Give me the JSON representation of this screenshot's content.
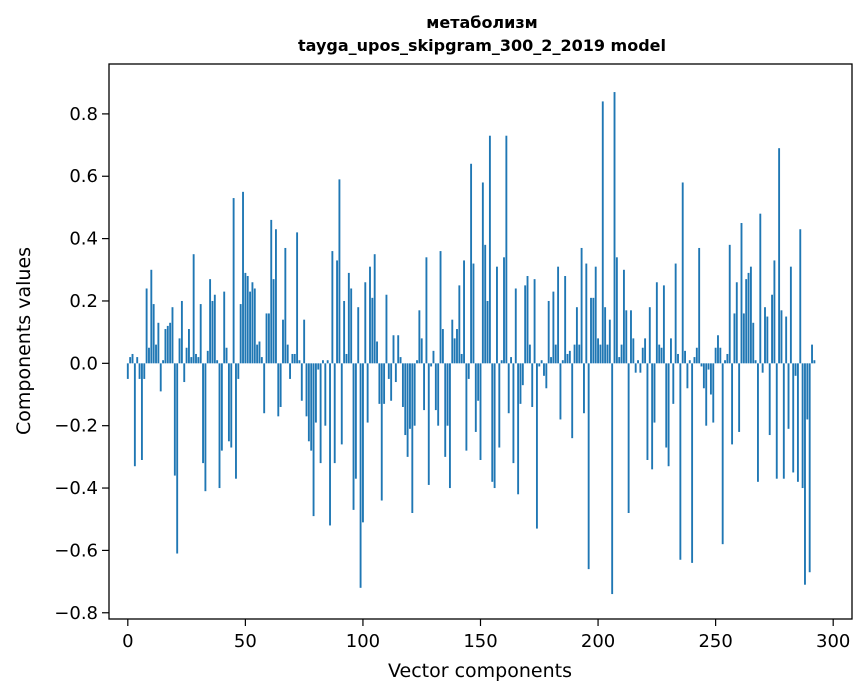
{
  "chart_data": {
    "type": "bar",
    "title": "метаболизм",
    "subtitle": "tayga_upos_skipgram_300_2_2019 model",
    "xlabel": "Vector components",
    "ylabel": "Components values",
    "xlim": [
      -8,
      308
    ],
    "ylim": [
      -0.82,
      0.96
    ],
    "xticks": [
      0,
      50,
      100,
      150,
      200,
      250,
      300
    ],
    "yticks": [
      -0.8,
      -0.6,
      -0.4,
      -0.2,
      0.0,
      0.2,
      0.4,
      0.6,
      0.8
    ],
    "ytick_labels": [
      "−0.8",
      "−0.6",
      "−0.4",
      "−0.2",
      "0.0",
      "0.2",
      "0.4",
      "0.6",
      "0.8"
    ],
    "bar_color": "#1f77b4",
    "values": [
      -0.05,
      0.02,
      0.03,
      -0.33,
      0.02,
      -0.05,
      -0.31,
      -0.05,
      0.24,
      0.05,
      0.3,
      0.19,
      0.06,
      0.13,
      -0.09,
      0.01,
      0.11,
      0.12,
      0.13,
      0.18,
      -0.36,
      -0.61,
      0.08,
      0.2,
      -0.06,
      0.05,
      0.11,
      0.02,
      0.35,
      0.03,
      0.02,
      0.19,
      -0.32,
      -0.41,
      0.04,
      0.27,
      0.2,
      0.22,
      0.01,
      -0.4,
      -0.28,
      0.23,
      0.05,
      -0.25,
      -0.27,
      0.53,
      -0.37,
      -0.05,
      0.19,
      0.55,
      0.29,
      0.28,
      0.23,
      0.26,
      0.24,
      0.06,
      0.07,
      0.02,
      -0.16,
      0.16,
      0.16,
      0.46,
      0.27,
      0.43,
      -0.17,
      -0.14,
      0.14,
      0.37,
      0.06,
      -0.05,
      0.03,
      0.03,
      0.42,
      0.01,
      -0.12,
      0.14,
      -0.17,
      -0.25,
      -0.28,
      -0.49,
      -0.19,
      -0.02,
      -0.32,
      0.01,
      -0.2,
      0.01,
      -0.52,
      0.36,
      -0.32,
      0.33,
      0.59,
      -0.26,
      0.2,
      0.03,
      0.29,
      0.24,
      -0.47,
      -0.37,
      0.18,
      -0.72,
      -0.51,
      0.26,
      -0.19,
      0.31,
      0.21,
      0.35,
      0.07,
      -0.13,
      -0.44,
      -0.13,
      0.22,
      -0.05,
      -0.12,
      0.09,
      -0.06,
      0.09,
      0.02,
      -0.14,
      -0.23,
      -0.3,
      -0.21,
      -0.48,
      -0.2,
      0.01,
      0.17,
      0.08,
      -0.15,
      0.34,
      -0.39,
      -0.01,
      0.04,
      -0.15,
      -0.2,
      0.36,
      0.11,
      -0.3,
      -0.2,
      -0.4,
      0.14,
      0.08,
      0.11,
      0.25,
      0.03,
      0.33,
      -0.28,
      -0.05,
      0.64,
      0.32,
      -0.22,
      -0.12,
      -0.31,
      0.58,
      0.38,
      0.2,
      0.73,
      -0.38,
      -0.4,
      0.31,
      -0.27,
      0.01,
      0.34,
      0.73,
      -0.16,
      0.02,
      -0.32,
      0.24,
      -0.42,
      -0.13,
      -0.07,
      0.25,
      0.28,
      0.06,
      -0.14,
      0.27,
      -0.53,
      -0.01,
      0.01,
      -0.04,
      -0.08,
      0.2,
      0.02,
      0.23,
      0.06,
      0.31,
      -0.18,
      0.01,
      0.28,
      0.03,
      0.04,
      -0.24,
      0.06,
      0.18,
      0.06,
      0.37,
      -0.16,
      0.32,
      -0.66,
      0.21,
      0.21,
      0.31,
      0.08,
      0.06,
      0.84,
      0.18,
      0.06,
      0.14,
      -0.74,
      0.87,
      0.34,
      0.02,
      0.06,
      0.3,
      0.17,
      -0.48,
      0.17,
      0.08,
      -0.03,
      0.01,
      -0.03,
      0.05,
      0.08,
      -0.31,
      0.18,
      -0.34,
      -0.19,
      0.26,
      0.06,
      0.05,
      0.25,
      -0.27,
      -0.33,
      0.08,
      -0.13,
      0.32,
      0.03,
      -0.63,
      0.58,
      0.04,
      -0.08,
      0.01,
      -0.64,
      0.02,
      0.05,
      0.37,
      -0.01,
      -0.08,
      -0.2,
      -0.02,
      -0.1,
      -0.19,
      0.05,
      0.09,
      0.05,
      -0.58,
      0.01,
      0.03,
      0.38,
      -0.26,
      0.16,
      0.26,
      -0.22,
      0.45,
      0.16,
      0.27,
      0.29,
      0.31,
      0.13,
      0.01,
      -0.38,
      0.48,
      -0.03,
      0.18,
      0.15,
      -0.23,
      0.22,
      0.33,
      -0.37,
      0.69,
      0.17,
      -0.37,
      0.15,
      -0.21,
      0.31,
      -0.35,
      -0.04,
      -0.38,
      0.43,
      -0.4,
      -0.71,
      -0.18,
      -0.67,
      0.06,
      0.01
    ]
  }
}
